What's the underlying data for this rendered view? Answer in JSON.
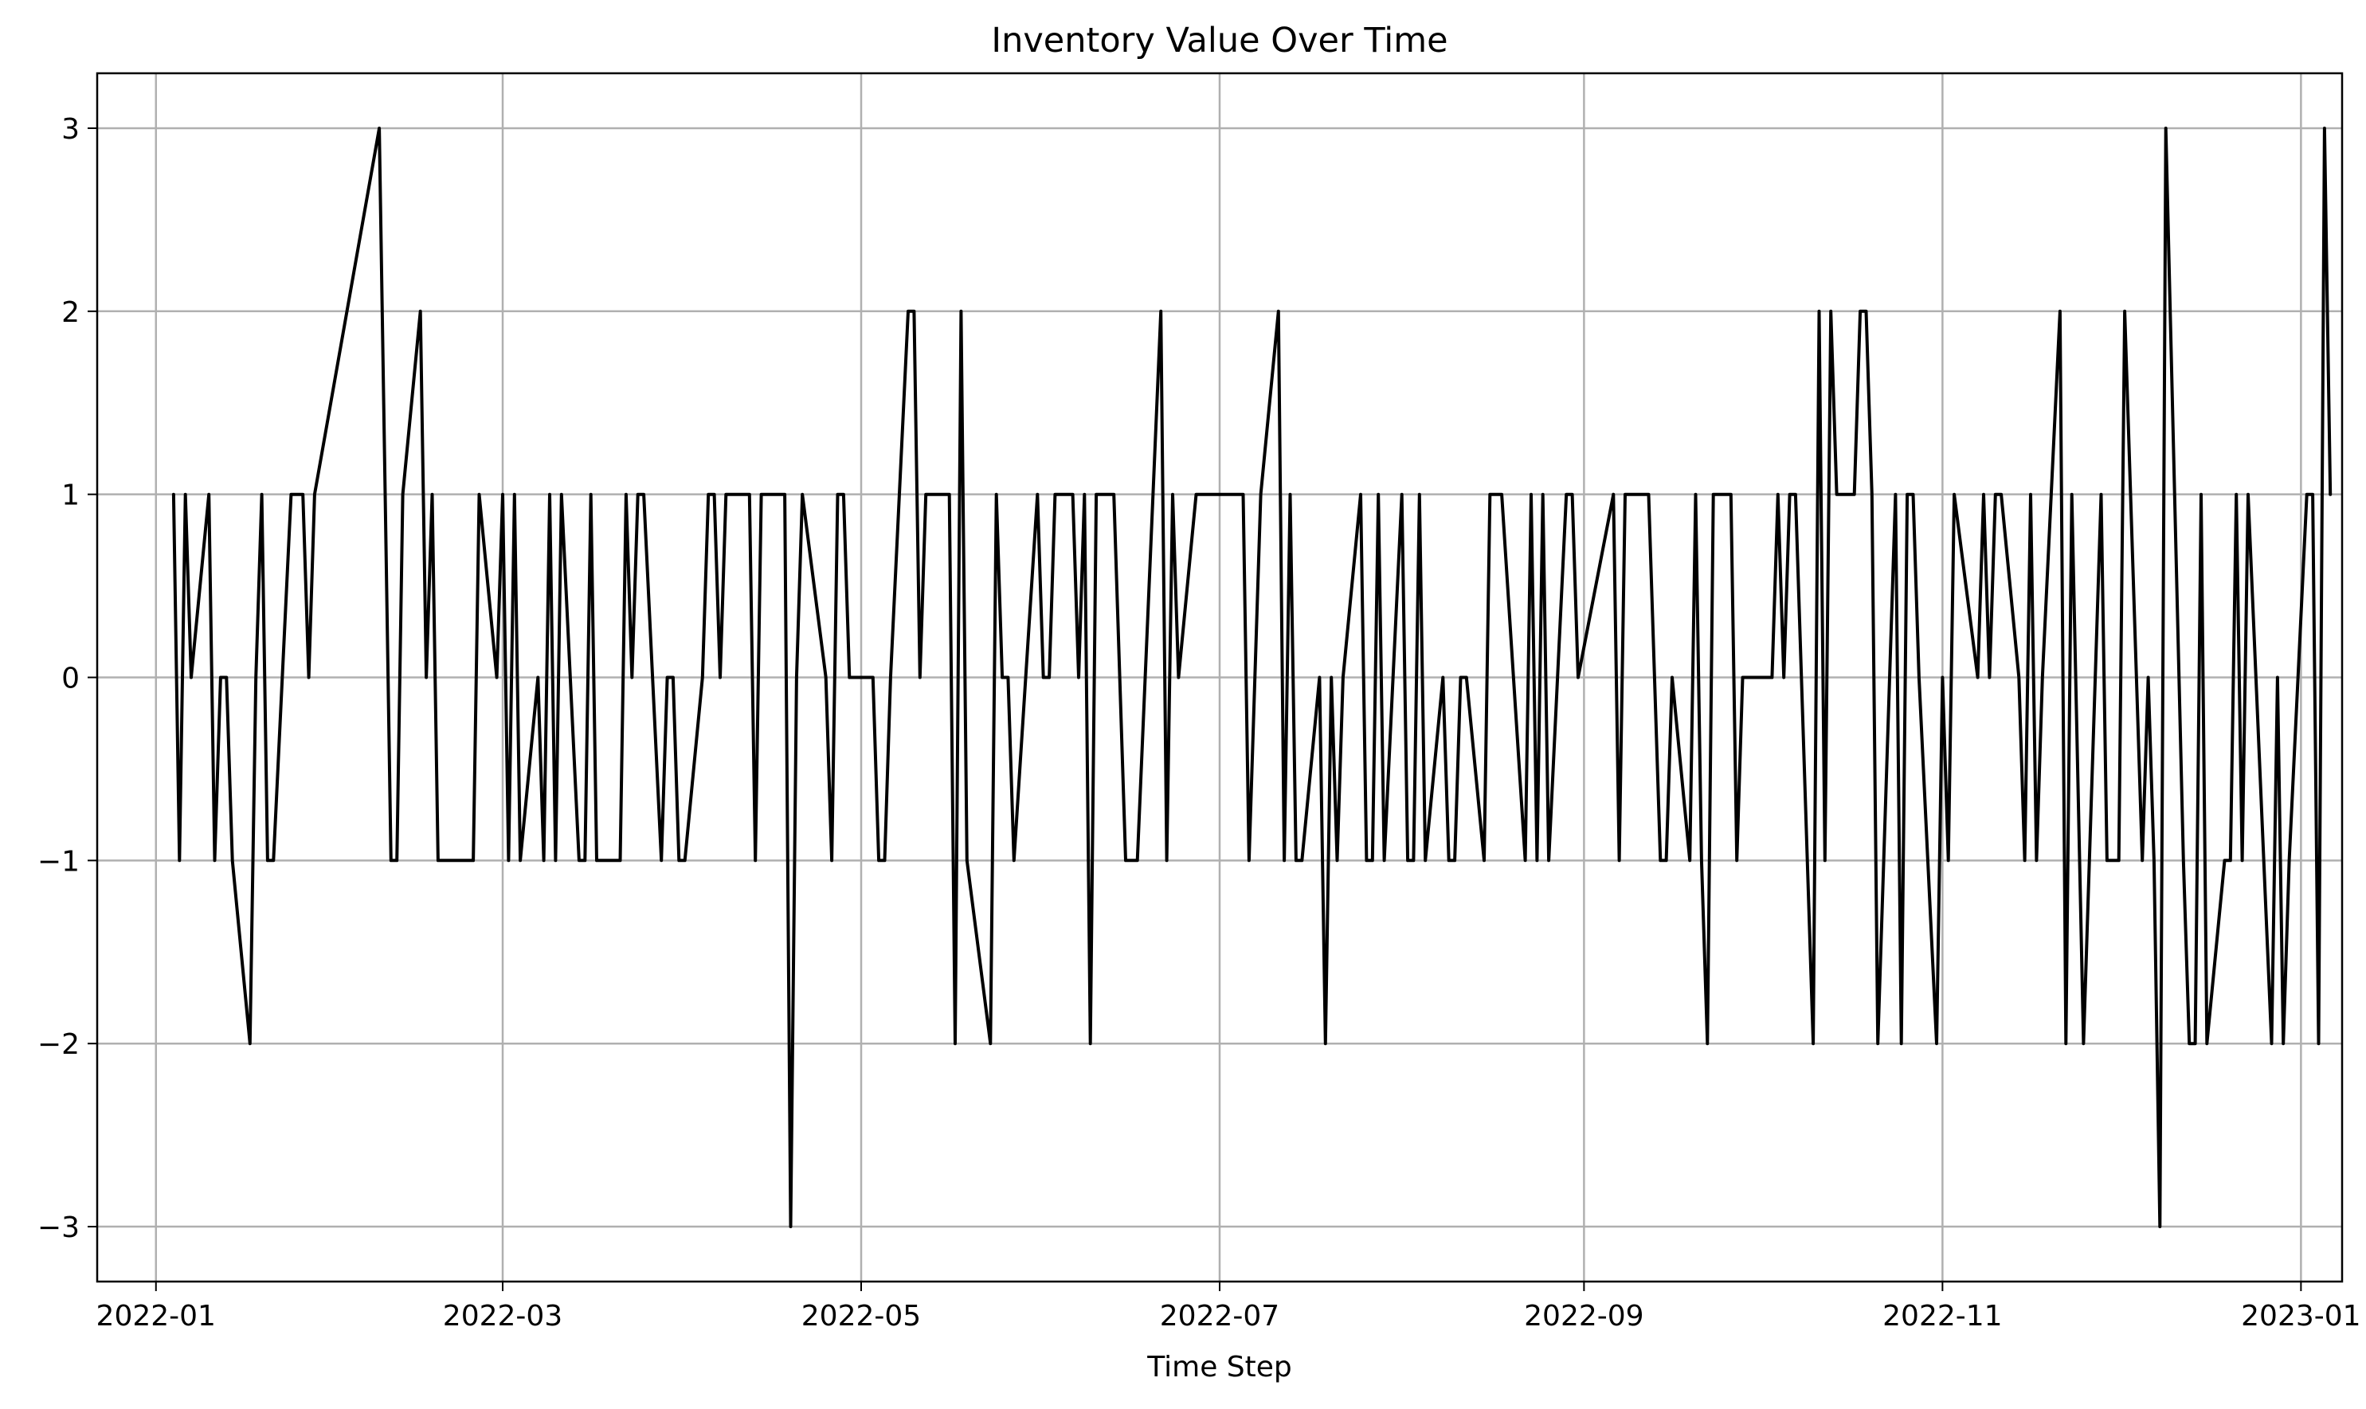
{
  "chart_data": {
    "type": "line",
    "title": "Inventory Value Over Time",
    "xlabel": "Time Step",
    "ylabel": "",
    "grid": true,
    "legend": "none",
    "xlim": [
      "2021-12-22",
      "2023-01-08"
    ],
    "ylim": [
      -3.3,
      3.3
    ],
    "x_ticks": [
      "2022-01",
      "2022-03",
      "2022-05",
      "2022-07",
      "2022-09",
      "2022-11",
      "2023-01"
    ],
    "y_ticks": [
      3,
      2,
      1,
      0,
      -1,
      -2,
      -3
    ],
    "y_tick_labels": [
      "3",
      "2",
      "1",
      "0",
      "−1",
      "−2",
      "−3"
    ],
    "series": [
      {
        "color": "#000000",
        "points": [
          [
            "2022-01-04",
            1
          ],
          [
            "2022-01-05",
            -1
          ],
          [
            "2022-01-06",
            1
          ],
          [
            "2022-01-07",
            0
          ],
          [
            "2022-01-10",
            1
          ],
          [
            "2022-01-11",
            -1
          ],
          [
            "2022-01-12",
            0
          ],
          [
            "2022-01-13",
            0
          ],
          [
            "2022-01-14",
            -1
          ],
          [
            "2022-01-17",
            -2
          ],
          [
            "2022-01-18",
            0
          ],
          [
            "2022-01-19",
            1
          ],
          [
            "2022-01-20",
            -1
          ],
          [
            "2022-01-21",
            -1
          ],
          [
            "2022-01-24",
            1
          ],
          [
            "2022-01-25",
            1
          ],
          [
            "2022-01-26",
            1
          ],
          [
            "2022-01-27",
            0
          ],
          [
            "2022-01-28",
            1
          ],
          [
            "2022-02-08",
            3
          ],
          [
            "2022-02-09",
            1
          ],
          [
            "2022-02-10",
            -1
          ],
          [
            "2022-02-11",
            -1
          ],
          [
            "2022-02-12",
            1
          ],
          [
            "2022-02-15",
            2
          ],
          [
            "2022-02-16",
            0
          ],
          [
            "2022-02-17",
            1
          ],
          [
            "2022-02-18",
            -1
          ],
          [
            "2022-02-21",
            -1
          ],
          [
            "2022-02-22",
            -1
          ],
          [
            "2022-02-23",
            -1
          ],
          [
            "2022-02-24",
            -1
          ],
          [
            "2022-02-25",
            1
          ],
          [
            "2022-02-28",
            0
          ],
          [
            "2022-03-01",
            1
          ],
          [
            "2022-03-02",
            -1
          ],
          [
            "2022-03-03",
            1
          ],
          [
            "2022-03-04",
            -1
          ],
          [
            "2022-03-07",
            0
          ],
          [
            "2022-03-08",
            -1
          ],
          [
            "2022-03-09",
            1
          ],
          [
            "2022-03-10",
            -1
          ],
          [
            "2022-03-11",
            1
          ],
          [
            "2022-03-14",
            -1
          ],
          [
            "2022-03-15",
            -1
          ],
          [
            "2022-03-16",
            1
          ],
          [
            "2022-03-17",
            -1
          ],
          [
            "2022-03-18",
            -1
          ],
          [
            "2022-03-21",
            -1
          ],
          [
            "2022-03-22",
            1
          ],
          [
            "2022-03-23",
            0
          ],
          [
            "2022-03-24",
            1
          ],
          [
            "2022-03-25",
            1
          ],
          [
            "2022-03-28",
            -1
          ],
          [
            "2022-03-29",
            0
          ],
          [
            "2022-03-30",
            0
          ],
          [
            "2022-03-31",
            -1
          ],
          [
            "2022-04-01",
            -1
          ],
          [
            "2022-04-04",
            0
          ],
          [
            "2022-04-05",
            1
          ],
          [
            "2022-04-06",
            1
          ],
          [
            "2022-04-07",
            0
          ],
          [
            "2022-04-08",
            1
          ],
          [
            "2022-04-11",
            1
          ],
          [
            "2022-04-12",
            1
          ],
          [
            "2022-04-13",
            -1
          ],
          [
            "2022-04-14",
            1
          ],
          [
            "2022-04-15",
            1
          ],
          [
            "2022-04-18",
            1
          ],
          [
            "2022-04-19",
            -3
          ],
          [
            "2022-04-20",
            0
          ],
          [
            "2022-04-21",
            1
          ],
          [
            "2022-04-25",
            0
          ],
          [
            "2022-04-26",
            -1
          ],
          [
            "2022-04-27",
            1
          ],
          [
            "2022-04-28",
            1
          ],
          [
            "2022-04-29",
            0
          ],
          [
            "2022-05-02",
            0
          ],
          [
            "2022-05-03",
            0
          ],
          [
            "2022-05-04",
            -1
          ],
          [
            "2022-05-05",
            -1
          ],
          [
            "2022-05-06",
            0
          ],
          [
            "2022-05-09",
            2
          ],
          [
            "2022-05-10",
            2
          ],
          [
            "2022-05-11",
            0
          ],
          [
            "2022-05-12",
            1
          ],
          [
            "2022-05-13",
            1
          ],
          [
            "2022-05-16",
            1
          ],
          [
            "2022-05-17",
            -2
          ],
          [
            "2022-05-18",
            2
          ],
          [
            "2022-05-19",
            -1
          ],
          [
            "2022-05-23",
            -2
          ],
          [
            "2022-05-24",
            1
          ],
          [
            "2022-05-25",
            0
          ],
          [
            "2022-05-26",
            0
          ],
          [
            "2022-05-27",
            -1
          ],
          [
            "2022-05-31",
            1
          ],
          [
            "2022-06-01",
            0
          ],
          [
            "2022-06-02",
            0
          ],
          [
            "2022-06-03",
            1
          ],
          [
            "2022-06-06",
            1
          ],
          [
            "2022-06-07",
            0
          ],
          [
            "2022-06-08",
            1
          ],
          [
            "2022-06-09",
            -2
          ],
          [
            "2022-06-10",
            1
          ],
          [
            "2022-06-13",
            1
          ],
          [
            "2022-06-14",
            0
          ],
          [
            "2022-06-15",
            -1
          ],
          [
            "2022-06-16",
            -1
          ],
          [
            "2022-06-17",
            -1
          ],
          [
            "2022-06-21",
            2
          ],
          [
            "2022-06-22",
            -1
          ],
          [
            "2022-06-23",
            1
          ],
          [
            "2022-06-24",
            0
          ],
          [
            "2022-06-27",
            1
          ],
          [
            "2022-06-28",
            1
          ],
          [
            "2022-06-29",
            1
          ],
          [
            "2022-06-30",
            1
          ],
          [
            "2022-07-05",
            1
          ],
          [
            "2022-07-06",
            -1
          ],
          [
            "2022-07-08",
            1
          ],
          [
            "2022-07-11",
            2
          ],
          [
            "2022-07-12",
            -1
          ],
          [
            "2022-07-13",
            1
          ],
          [
            "2022-07-14",
            -1
          ],
          [
            "2022-07-15",
            -1
          ],
          [
            "2022-07-18",
            0
          ],
          [
            "2022-07-19",
            -2
          ],
          [
            "2022-07-20",
            0
          ],
          [
            "2022-07-21",
            -1
          ],
          [
            "2022-07-22",
            0
          ],
          [
            "2022-07-25",
            1
          ],
          [
            "2022-07-26",
            -1
          ],
          [
            "2022-07-27",
            -1
          ],
          [
            "2022-07-28",
            1
          ],
          [
            "2022-07-29",
            -1
          ],
          [
            "2022-08-01",
            1
          ],
          [
            "2022-08-02",
            -1
          ],
          [
            "2022-08-03",
            -1
          ],
          [
            "2022-08-04",
            1
          ],
          [
            "2022-08-05",
            -1
          ],
          [
            "2022-08-08",
            0
          ],
          [
            "2022-08-09",
            -1
          ],
          [
            "2022-08-10",
            -1
          ],
          [
            "2022-08-11",
            0
          ],
          [
            "2022-08-12",
            0
          ],
          [
            "2022-08-15",
            -1
          ],
          [
            "2022-08-16",
            1
          ],
          [
            "2022-08-17",
            1
          ],
          [
            "2022-08-18",
            1
          ],
          [
            "2022-08-22",
            -1
          ],
          [
            "2022-08-23",
            1
          ],
          [
            "2022-08-24",
            -1
          ],
          [
            "2022-08-25",
            1
          ],
          [
            "2022-08-26",
            -1
          ],
          [
            "2022-08-29",
            1
          ],
          [
            "2022-08-30",
            1
          ],
          [
            "2022-08-31",
            0
          ],
          [
            "2022-09-06",
            1
          ],
          [
            "2022-09-07",
            -1
          ],
          [
            "2022-09-08",
            1
          ],
          [
            "2022-09-09",
            1
          ],
          [
            "2022-09-12",
            1
          ],
          [
            "2022-09-13",
            0
          ],
          [
            "2022-09-14",
            -1
          ],
          [
            "2022-09-15",
            -1
          ],
          [
            "2022-09-16",
            0
          ],
          [
            "2022-09-19",
            -1
          ],
          [
            "2022-09-20",
            1
          ],
          [
            "2022-09-21",
            -1
          ],
          [
            "2022-09-22",
            -2
          ],
          [
            "2022-09-23",
            1
          ],
          [
            "2022-09-26",
            1
          ],
          [
            "2022-09-27",
            -1
          ],
          [
            "2022-09-28",
            0
          ],
          [
            "2022-09-29",
            0
          ],
          [
            "2022-09-30",
            0
          ],
          [
            "2022-10-03",
            0
          ],
          [
            "2022-10-04",
            1
          ],
          [
            "2022-10-05",
            0
          ],
          [
            "2022-10-06",
            1
          ],
          [
            "2022-10-07",
            1
          ],
          [
            "2022-10-10",
            -2
          ],
          [
            "2022-10-11",
            2
          ],
          [
            "2022-10-12",
            -1
          ],
          [
            "2022-10-13",
            2
          ],
          [
            "2022-10-14",
            1
          ],
          [
            "2022-10-17",
            1
          ],
          [
            "2022-10-18",
            2
          ],
          [
            "2022-10-19",
            2
          ],
          [
            "2022-10-20",
            1
          ],
          [
            "2022-10-21",
            -2
          ],
          [
            "2022-10-24",
            1
          ],
          [
            "2022-10-25",
            -2
          ],
          [
            "2022-10-26",
            1
          ],
          [
            "2022-10-27",
            1
          ],
          [
            "2022-10-28",
            0
          ],
          [
            "2022-10-31",
            -2
          ],
          [
            "2022-11-01",
            0
          ],
          [
            "2022-11-02",
            -1
          ],
          [
            "2022-11-03",
            1
          ],
          [
            "2022-11-07",
            0
          ],
          [
            "2022-11-08",
            1
          ],
          [
            "2022-11-09",
            0
          ],
          [
            "2022-11-10",
            1
          ],
          [
            "2022-11-11",
            1
          ],
          [
            "2022-11-14",
            0
          ],
          [
            "2022-11-15",
            -1
          ],
          [
            "2022-11-16",
            1
          ],
          [
            "2022-11-17",
            -1
          ],
          [
            "2022-11-18",
            0
          ],
          [
            "2022-11-21",
            2
          ],
          [
            "2022-11-22",
            -2
          ],
          [
            "2022-11-23",
            1
          ],
          [
            "2022-11-25",
            -2
          ],
          [
            "2022-11-28",
            1
          ],
          [
            "2022-11-29",
            -1
          ],
          [
            "2022-11-30",
            -1
          ],
          [
            "2022-12-01",
            -1
          ],
          [
            "2022-12-02",
            2
          ],
          [
            "2022-12-05",
            -1
          ],
          [
            "2022-12-06",
            0
          ],
          [
            "2022-12-07",
            -1
          ],
          [
            "2022-12-08",
            -3
          ],
          [
            "2022-12-09",
            3
          ],
          [
            "2022-12-12",
            -1
          ],
          [
            "2022-12-13",
            -2
          ],
          [
            "2022-12-14",
            -2
          ],
          [
            "2022-12-15",
            1
          ],
          [
            "2022-12-16",
            -2
          ],
          [
            "2022-12-19",
            -1
          ],
          [
            "2022-12-20",
            -1
          ],
          [
            "2022-12-21",
            1
          ],
          [
            "2022-12-22",
            -1
          ],
          [
            "2022-12-23",
            1
          ],
          [
            "2022-12-27",
            -2
          ],
          [
            "2022-12-28",
            0
          ],
          [
            "2022-12-29",
            -2
          ],
          [
            "2022-12-30",
            -1
          ],
          [
            "2023-01-02",
            1
          ],
          [
            "2023-01-03",
            1
          ],
          [
            "2023-01-04",
            -2
          ],
          [
            "2023-01-05",
            3
          ],
          [
            "2023-01-06",
            1
          ]
        ]
      }
    ]
  }
}
